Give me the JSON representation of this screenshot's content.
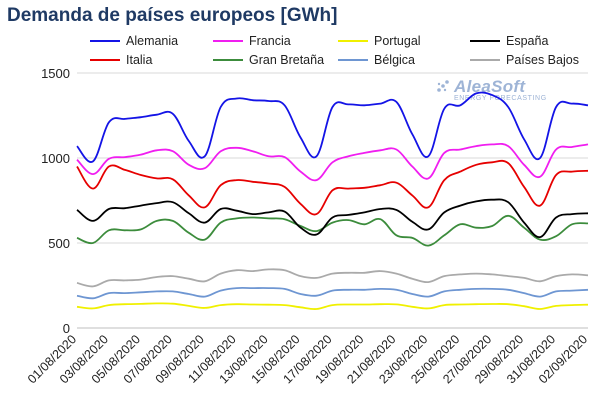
{
  "title": "Demanda de países europeos [GWh]",
  "logo": {
    "name": "AleaSoft",
    "tagline": "ENERGY FORECASTING"
  },
  "chart_data": {
    "type": "line",
    "title": "Demanda de países europeos [GWh]",
    "xlabel": "",
    "ylabel": "",
    "ylim": [
      0,
      1500
    ],
    "yticks": [
      0,
      500,
      1000,
      1500
    ],
    "grid": "horizontal",
    "legend_position": "top",
    "x": [
      "01/08/2020",
      "02/08/2020",
      "03/08/2020",
      "04/08/2020",
      "05/08/2020",
      "06/08/2020",
      "07/08/2020",
      "08/08/2020",
      "09/08/2020",
      "10/08/2020",
      "11/08/2020",
      "12/08/2020",
      "13/08/2020",
      "14/08/2020",
      "15/08/2020",
      "16/08/2020",
      "17/08/2020",
      "18/08/2020",
      "19/08/2020",
      "20/08/2020",
      "21/08/2020",
      "22/08/2020",
      "23/08/2020",
      "24/08/2020",
      "25/08/2020",
      "26/08/2020",
      "27/08/2020",
      "28/08/2020",
      "29/08/2020",
      "30/08/2020",
      "31/08/2020",
      "01/09/2020",
      "02/09/2020"
    ],
    "xtick_labels": [
      "01/08/2020",
      "03/08/2020",
      "05/08/2020",
      "07/08/2020",
      "09/08/2020",
      "11/08/2020",
      "13/08/2020",
      "15/08/2020",
      "17/08/2020",
      "19/08/2020",
      "21/08/2020",
      "23/08/2020",
      "25/08/2020",
      "27/08/2020",
      "29/08/2020",
      "31/08/2020",
      "02/09/2020"
    ],
    "series": [
      {
        "name": "Alemania",
        "color": "#1414e6",
        "values": [
          1070,
          980,
          1210,
          1230,
          1240,
          1255,
          1260,
          1100,
          1010,
          1300,
          1350,
          1340,
          1335,
          1310,
          1120,
          1010,
          1300,
          1315,
          1310,
          1320,
          1330,
          1140,
          1010,
          1290,
          1310,
          1380,
          1370,
          1300,
          1110,
          1000,
          1300,
          1320,
          1310
        ]
      },
      {
        "name": "Francia",
        "color": "#f01ef0",
        "values": [
          990,
          905,
          995,
          1005,
          1020,
          1045,
          1040,
          960,
          940,
          1040,
          1060,
          1040,
          1010,
          1005,
          920,
          870,
          975,
          1010,
          1030,
          1045,
          1050,
          950,
          880,
          1030,
          1050,
          1070,
          1080,
          1070,
          960,
          890,
          1050,
          1065,
          1080
        ]
      },
      {
        "name": "Portugal",
        "color": "#f0f000",
        "values": [
          125,
          115,
          135,
          140,
          142,
          145,
          143,
          130,
          118,
          135,
          140,
          138,
          137,
          135,
          122,
          112,
          135,
          138,
          138,
          140,
          139,
          125,
          115,
          135,
          138,
          140,
          141,
          140,
          128,
          112,
          130,
          135,
          137
        ]
      },
      {
        "name": "España",
        "color": "#000000",
        "values": [
          695,
          630,
          700,
          705,
          720,
          735,
          740,
          675,
          620,
          700,
          690,
          670,
          680,
          685,
          590,
          550,
          650,
          665,
          680,
          700,
          695,
          625,
          580,
          680,
          720,
          745,
          755,
          740,
          620,
          535,
          650,
          670,
          675
        ]
      },
      {
        "name": "Italia",
        "color": "#e60000",
        "values": [
          950,
          820,
          950,
          930,
          900,
          880,
          875,
          780,
          710,
          840,
          870,
          860,
          850,
          830,
          730,
          670,
          810,
          820,
          825,
          840,
          855,
          780,
          710,
          870,
          920,
          960,
          975,
          970,
          830,
          720,
          900,
          920,
          925
        ]
      },
      {
        "name": "Gran Bretaña",
        "color": "#3c8c3c",
        "values": [
          530,
          500,
          575,
          575,
          580,
          630,
          630,
          560,
          520,
          620,
          645,
          650,
          645,
          640,
          600,
          570,
          620,
          635,
          610,
          640,
          545,
          530,
          485,
          545,
          610,
          590,
          600,
          660,
          590,
          520,
          540,
          610,
          615
        ]
      },
      {
        "name": "Bélgica",
        "color": "#6e96d2",
        "values": [
          190,
          175,
          205,
          205,
          210,
          215,
          215,
          200,
          185,
          220,
          235,
          235,
          235,
          230,
          200,
          190,
          220,
          225,
          225,
          230,
          225,
          200,
          185,
          215,
          225,
          230,
          230,
          225,
          205,
          185,
          215,
          220,
          225
        ]
      },
      {
        "name": "Países Bajos",
        "color": "#aaaaaa",
        "values": [
          265,
          245,
          280,
          280,
          285,
          300,
          305,
          290,
          275,
          320,
          340,
          335,
          345,
          340,
          305,
          295,
          320,
          325,
          325,
          335,
          320,
          290,
          270,
          305,
          315,
          320,
          315,
          305,
          295,
          275,
          305,
          315,
          310
        ]
      }
    ]
  }
}
